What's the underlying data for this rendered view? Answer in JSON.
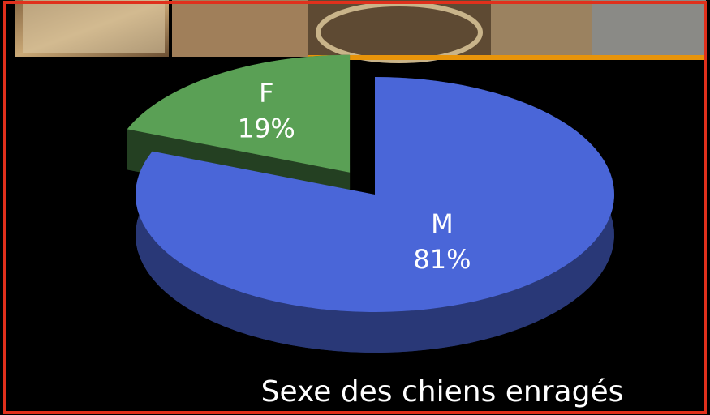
{
  "chart_data": {
    "type": "pie",
    "title": "Sexe des chiens enragés",
    "categories": [
      "M",
      "F"
    ],
    "values": [
      81,
      19
    ],
    "value_labels": [
      "81%",
      "19%"
    ],
    "colors": [
      "#4a66d8",
      "#5aa055"
    ],
    "explode": [
      false,
      true
    ]
  }
}
